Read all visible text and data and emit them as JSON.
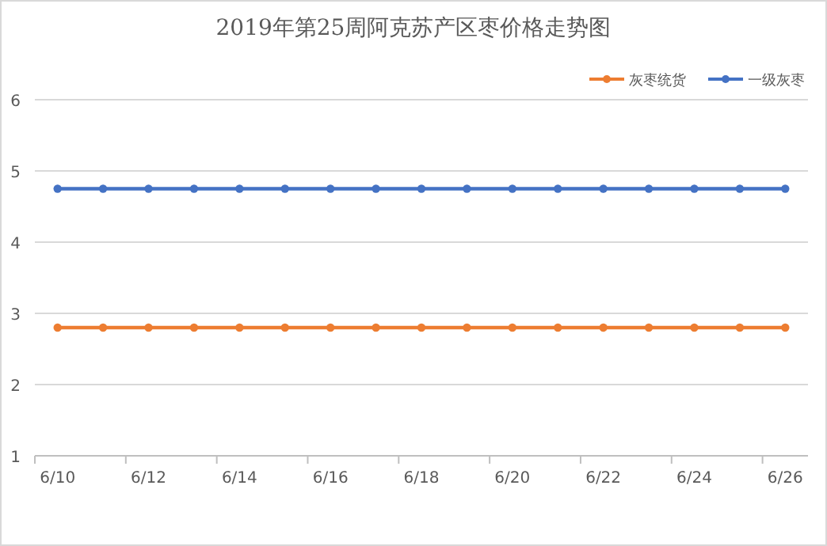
{
  "chart_data": {
    "type": "line",
    "title": "2019年第25周阿克苏产区枣价格走势图",
    "categories": [
      "6/10",
      null,
      "6/12",
      null,
      "6/14",
      null,
      "6/16",
      null,
      "6/18",
      null,
      "6/20",
      null,
      "6/22",
      null,
      "6/24",
      null,
      "6/26"
    ],
    "series": [
      {
        "name": "灰枣统货",
        "color": "#ed7d31",
        "values": [
          2.8,
          2.8,
          2.8,
          2.8,
          2.8,
          2.8,
          2.8,
          2.8,
          2.8,
          2.8,
          2.8,
          2.8,
          2.8,
          2.8,
          2.8,
          2.8,
          2.8
        ]
      },
      {
        "name": "一级灰枣",
        "color": "#4472c4",
        "values": [
          4.75,
          4.75,
          4.75,
          4.75,
          4.75,
          4.75,
          4.75,
          4.75,
          4.75,
          4.75,
          4.75,
          4.75,
          4.75,
          4.75,
          4.75,
          4.75,
          4.75
        ]
      }
    ],
    "ylim": [
      1,
      6
    ],
    "yticks": [
      1,
      2,
      3,
      4,
      5,
      6
    ],
    "grid": "y",
    "legend": "top right",
    "marker": "circle",
    "line_style": "solid"
  }
}
